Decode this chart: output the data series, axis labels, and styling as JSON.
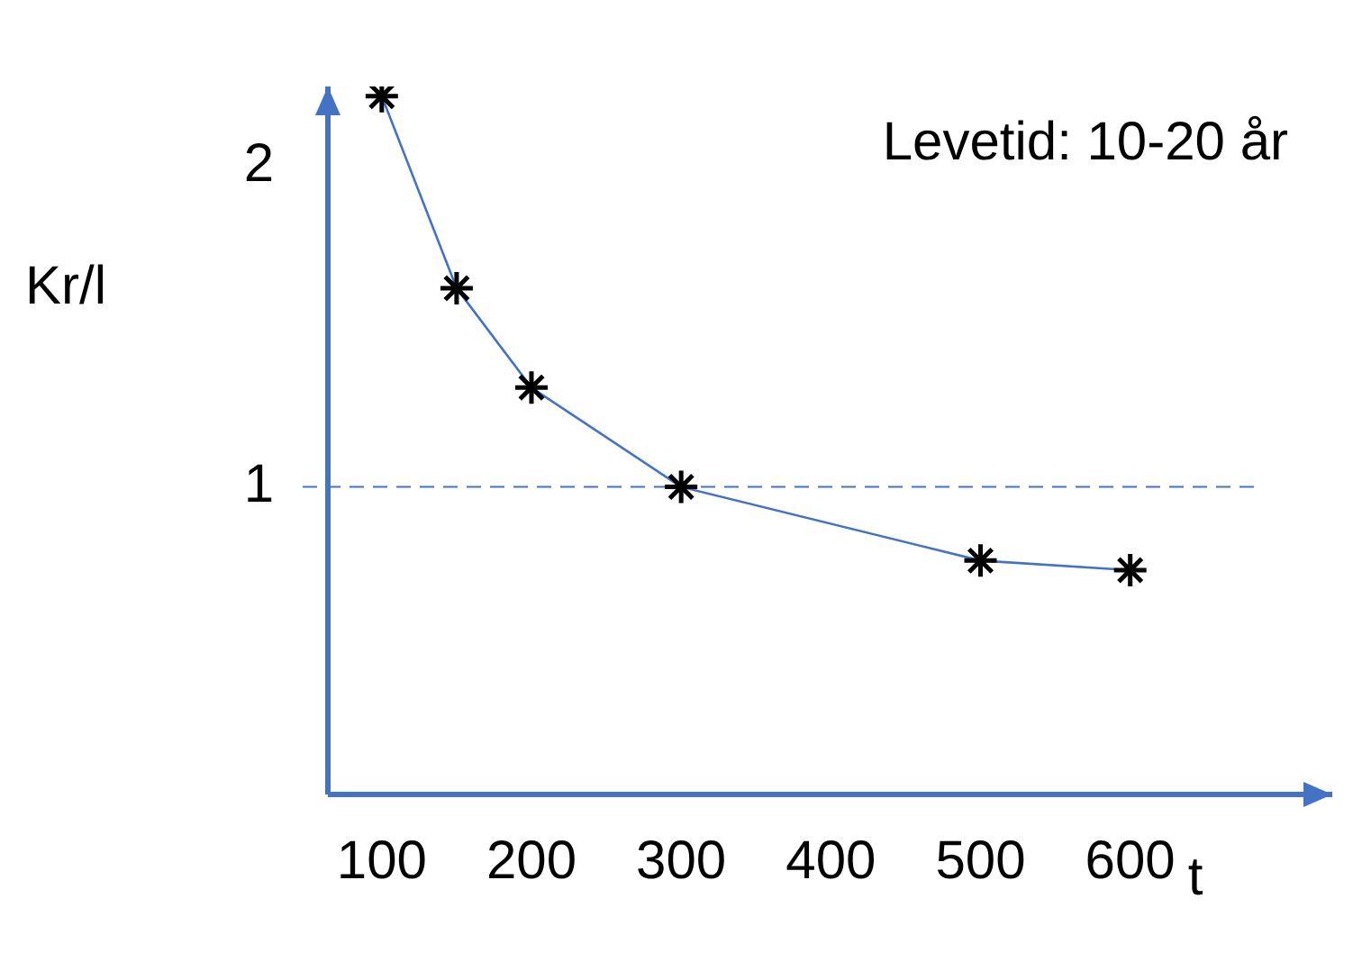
{
  "chart_data": {
    "type": "line",
    "x": [
      100,
      150,
      200,
      300,
      500,
      600
    ],
    "series": [
      {
        "color": "#4472c4",
        "values": [
          2.22,
          1.62,
          1.31,
          1.0,
          0.77,
          0.74
        ]
      }
    ],
    "xlim": [
      64,
      735
    ],
    "xticks": [
      100,
      200,
      300,
      400,
      500,
      600
    ],
    "ylim": [
      0.04,
      2.25
    ],
    "yticks": [
      1,
      2
    ],
    "xlabel": "t",
    "ylabel": "Kr/l",
    "annotations": [
      "Levetid: 10-20 år"
    ],
    "ref_lines": [
      {
        "axis": "y",
        "value": 1,
        "color": "#4472c4",
        "line_style": "dashed"
      }
    ],
    "marker": "cross",
    "grid": false,
    "legend": false
  }
}
